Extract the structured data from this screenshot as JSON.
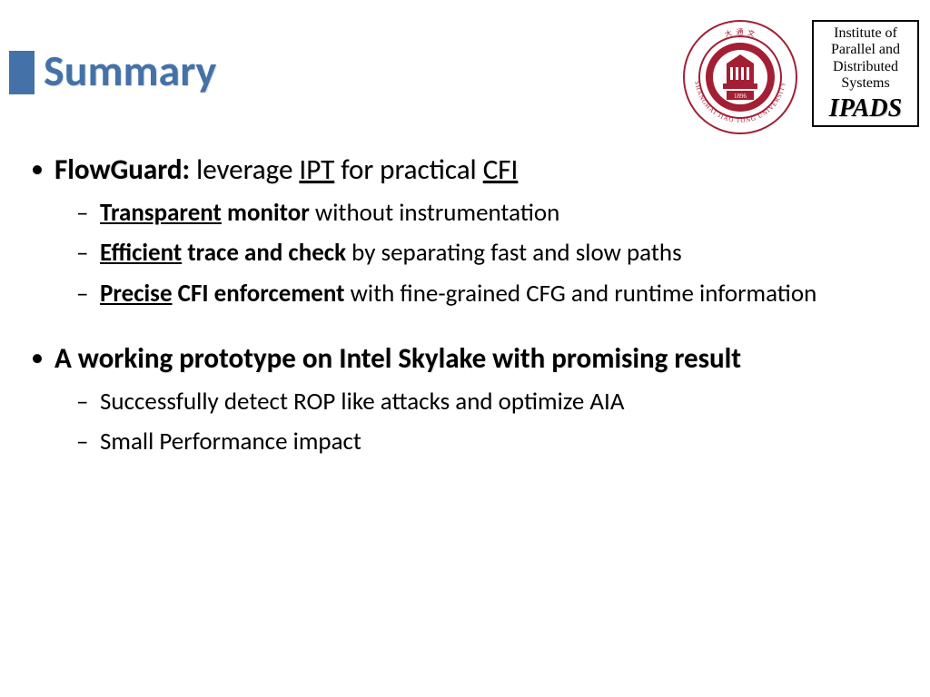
{
  "title": "Summary",
  "title_color": "#4472a8",
  "accent_bar_color": "#4472a8",
  "ipads_box": {
    "line1": "Institute of",
    "line2": "Parallel and",
    "line3": "Distributed",
    "line4": "Systems",
    "acronym": "IPADS"
  },
  "seal": {
    "ring_text_top": "SHANGHAI",
    "ring_text_bottom": "JIAO TONG UNIVERSITY",
    "year": "1896",
    "color": "#a31f34"
  },
  "bullets": [
    {
      "headline_parts": [
        {
          "text": "FlowGuard:",
          "bold": true
        },
        {
          "text": " leverage "
        },
        {
          "text": "IPT",
          "underline": true
        },
        {
          "text": " for practical "
        },
        {
          "text": "CFI",
          "underline": true
        }
      ],
      "sub": [
        [
          {
            "text": "Transparent",
            "bold": true,
            "underline": true
          },
          {
            "text": " monitor",
            "bold": true
          },
          {
            "text": " without instrumentation"
          }
        ],
        [
          {
            "text": "Efficient",
            "bold": true,
            "underline": true
          },
          {
            "text": " trace and check",
            "bold": true
          },
          {
            "text": " by separating fast and slow paths"
          }
        ],
        [
          {
            "text": "Precise",
            "bold": true,
            "underline": true
          },
          {
            "text": " CFI enforcement",
            "bold": true
          },
          {
            "text": " with fine-grained CFG and runtime information"
          }
        ]
      ]
    },
    {
      "headline_parts": [
        {
          "text": "A working prototype on Intel Skylake with promising result",
          "bold": true
        }
      ],
      "sub": [
        [
          {
            "text": "Successfully detect ROP like attacks and optimize AIA"
          }
        ],
        [
          {
            "text": "Small Performance impact"
          }
        ]
      ]
    }
  ]
}
